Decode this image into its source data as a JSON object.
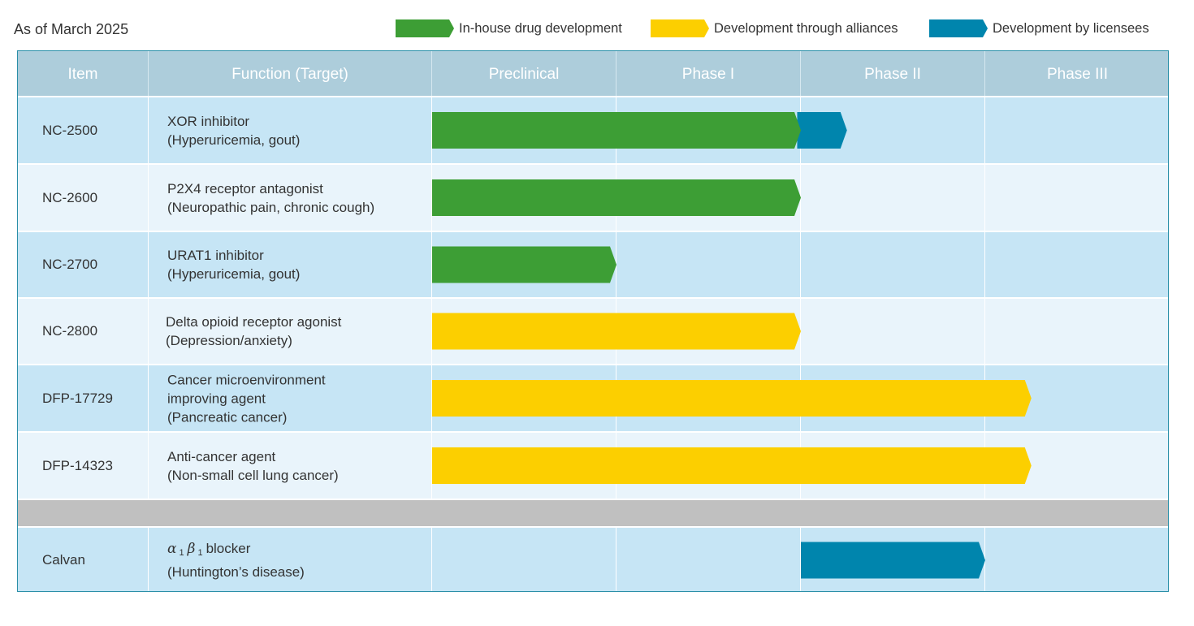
{
  "as_of": "As of March 2025",
  "legend": [
    {
      "label": "In-house drug development",
      "color": "#3d9e35"
    },
    {
      "label": "Development through alliances",
      "color": "#fccf00"
    },
    {
      "label": "Development by licensees",
      "color": "#0085ad"
    }
  ],
  "header": {
    "item": "Item",
    "function": "Function (Target)",
    "phases": [
      "Preclinical",
      "Phase I",
      "Phase II",
      "Phase III"
    ]
  },
  "rows": [
    {
      "item": "NC-2500",
      "lines": [
        "XOR inhibitor",
        "(Hyperuricemia, gout)"
      ]
    },
    {
      "item": "NC-2600",
      "lines": [
        "P2X4 receptor antagonist",
        "(Neuropathic pain, chronic cough)"
      ]
    },
    {
      "item": "NC-2700",
      "lines": [
        "URAT1 inhibitor",
        "(Hyperuricemia, gout)"
      ]
    },
    {
      "item": "NC-2800",
      "lines": [
        "Delta opioid receptor agonist",
        "(Depression/anxiety)"
      ]
    },
    {
      "item": "DFP-17729",
      "lines": [
        "Cancer microenvironment",
        "improving agent",
        "(Pancreatic cancer)"
      ]
    },
    {
      "item": "DFP-14323",
      "lines": [
        "Anti-cancer agent",
        "(Non-small cell lung cancer)"
      ]
    }
  ],
  "licensed_row": {
    "item": "Calvan",
    "greek_a": "α",
    "sub_a": "1",
    "greek_b": "β",
    "sub_b": "1",
    "line1_rest": "blocker",
    "line2": "(Huntington’s disease)"
  },
  "chart_data": {
    "type": "gantt",
    "title": "",
    "x_axis": {
      "categories": [
        "Preclinical",
        "Phase I",
        "Phase II",
        "Phase III"
      ],
      "range": [
        0,
        4
      ],
      "unit": "phase"
    },
    "series": [
      {
        "name": "In-house drug development",
        "color": "#3d9e35"
      },
      {
        "name": "Development through alliances",
        "color": "#fccf00"
      },
      {
        "name": "Development by licensees",
        "color": "#0085ad"
      }
    ],
    "bars": [
      {
        "row": 0,
        "series": "In-house drug development",
        "start": 0,
        "end": 2.0
      },
      {
        "row": 0,
        "series": "Development by licensees",
        "start": 1.98,
        "end": 2.25
      },
      {
        "row": 1,
        "series": "In-house drug development",
        "start": 0,
        "end": 2.0
      },
      {
        "row": 2,
        "series": "In-house drug development",
        "start": 0,
        "end": 1.0
      },
      {
        "row": 3,
        "series": "Development through alliances",
        "start": 0,
        "end": 2.0
      },
      {
        "row": 4,
        "series": "Development through alliances",
        "start": 0,
        "end": 3.25
      },
      {
        "row": 5,
        "series": "Development through alliances",
        "start": 0,
        "end": 3.25
      },
      {
        "row": 7,
        "series": "Development by licensees",
        "start": 2.0,
        "end": 3.0
      }
    ]
  }
}
